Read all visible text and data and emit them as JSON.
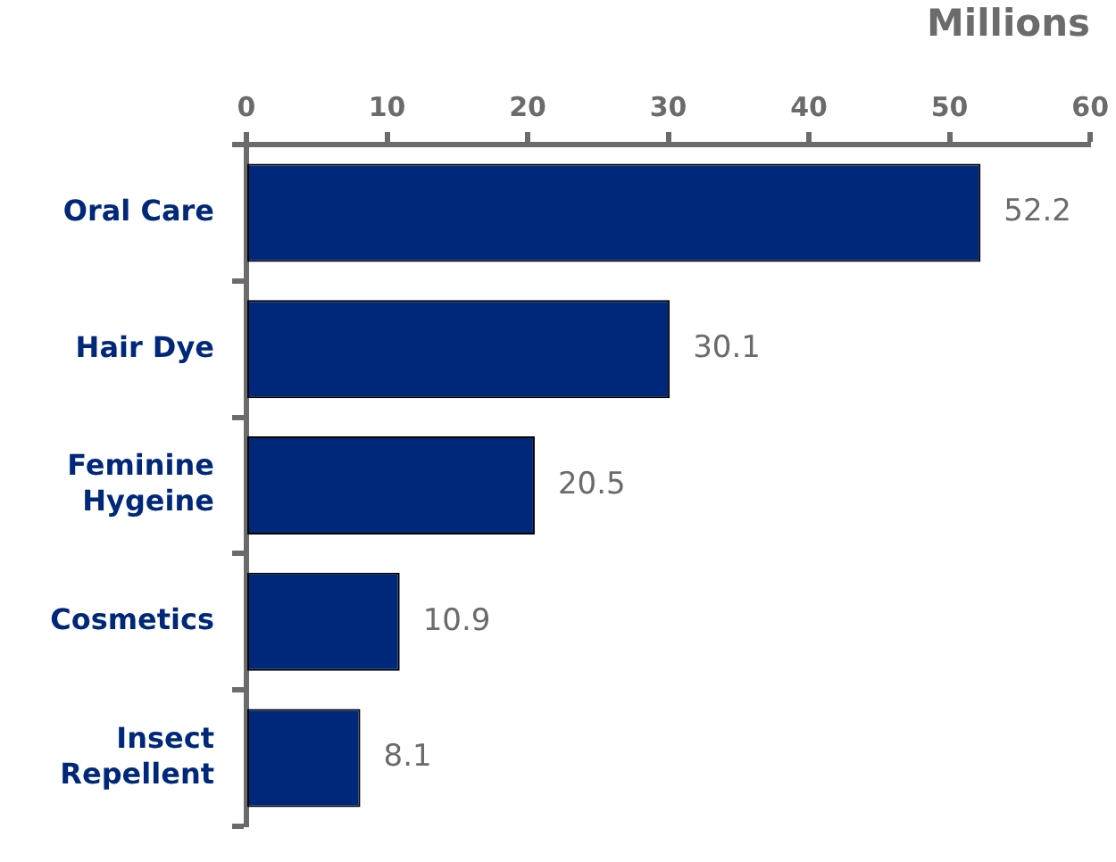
{
  "chart_data": {
    "type": "bar",
    "orientation": "horizontal",
    "xlabel": "Millions",
    "categories": [
      "Oral Care",
      "Hair Dye",
      "Feminine Hygeine",
      "Cosmetics",
      "Insect Repellent"
    ],
    "values": [
      52.2,
      30.1,
      20.5,
      10.9,
      8.1
    ],
    "color": "#00287a",
    "xlim": [
      0,
      60
    ],
    "xticks": [
      0,
      10,
      20,
      30,
      40,
      50,
      60
    ],
    "data_labels": true,
    "grid": false,
    "legend": false
  }
}
